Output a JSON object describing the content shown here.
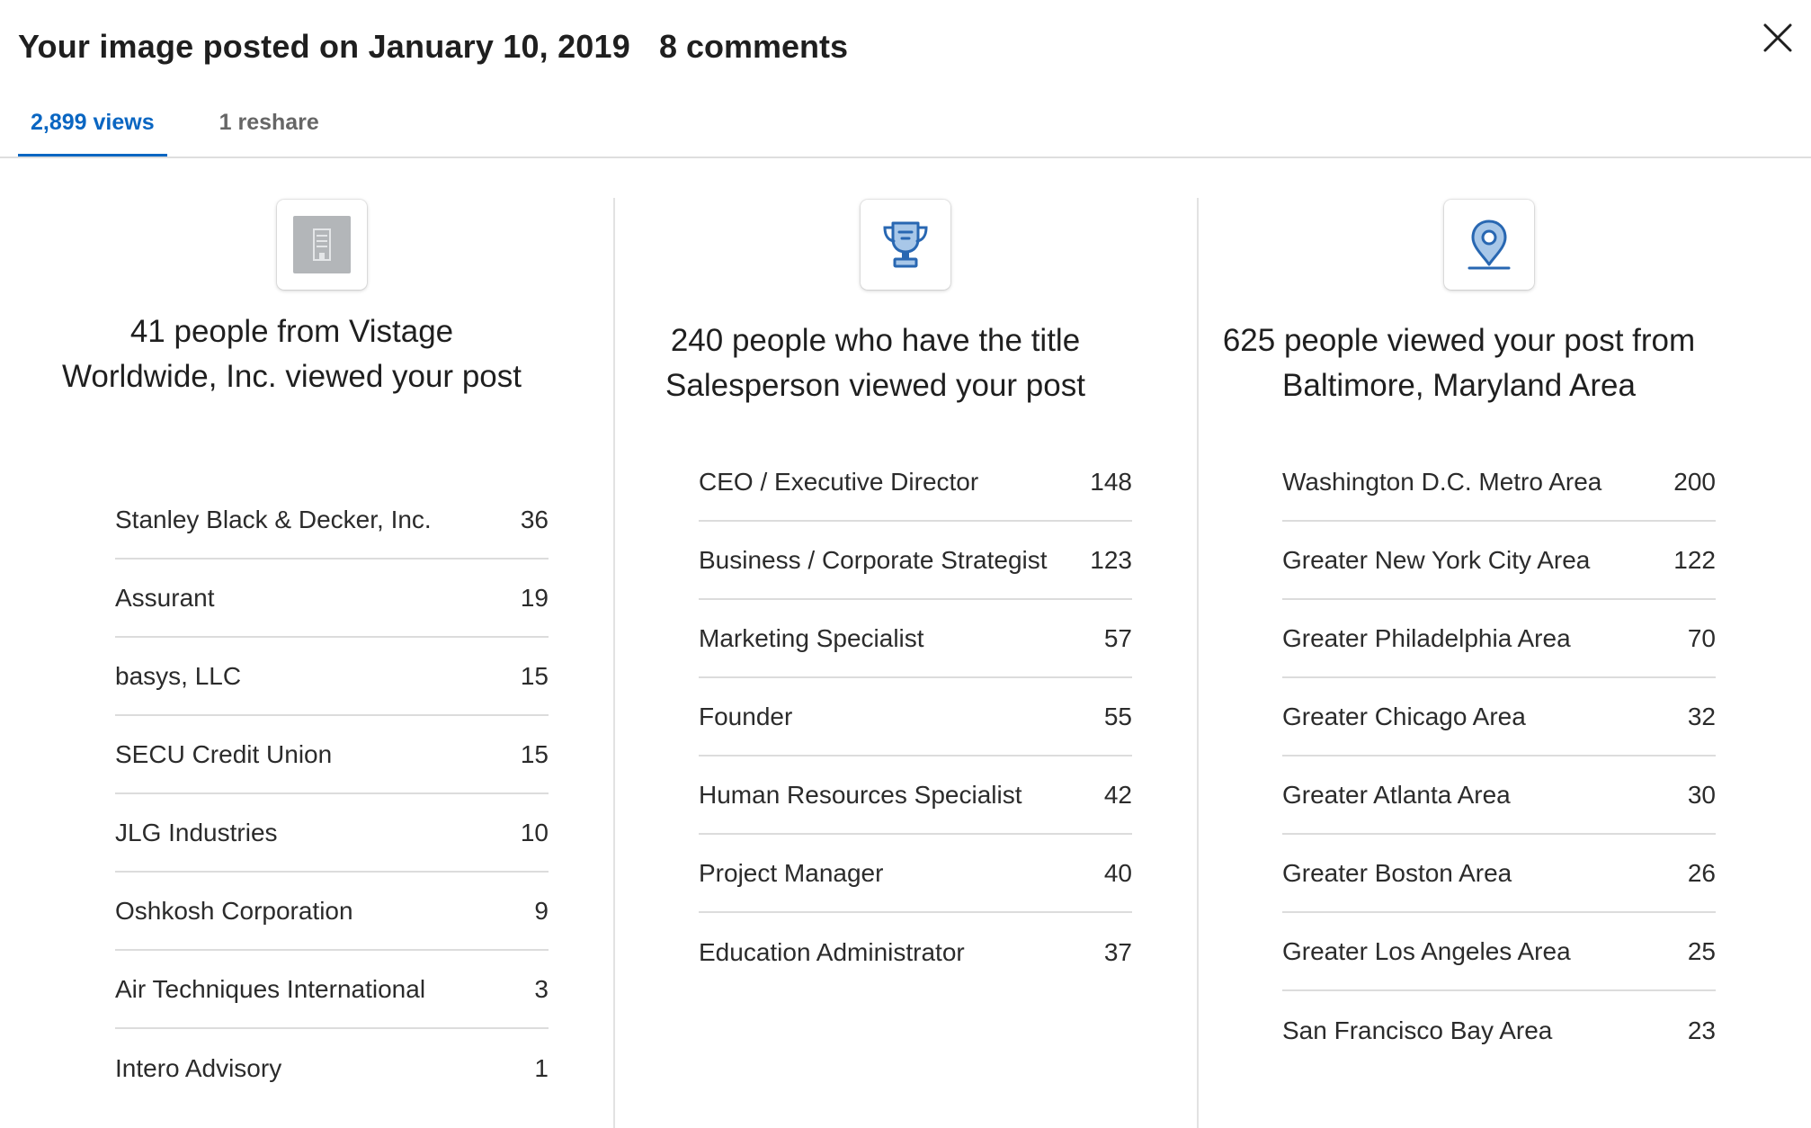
{
  "header": {
    "title": "Your image posted on January 10, 2019",
    "comments": "8 comments"
  },
  "tabs": [
    {
      "label": "2,899 views",
      "active": true
    },
    {
      "label": "1 reshare",
      "active": false
    }
  ],
  "colors": {
    "accent": "#0a66c2",
    "icon_blue": "#2867b2",
    "icon_fill": "#a8c7e8"
  },
  "columns": [
    {
      "icon": "building-icon",
      "heading": "41 people from Vistage Worldwide, Inc. viewed your post",
      "rows": [
        {
          "label": "Stanley Black & Decker, Inc.",
          "count": "36"
        },
        {
          "label": "Assurant",
          "count": "19"
        },
        {
          "label": "basys, LLC",
          "count": "15"
        },
        {
          "label": "SECU Credit Union",
          "count": "15"
        },
        {
          "label": "JLG Industries",
          "count": "10"
        },
        {
          "label": "Oshkosh Corporation",
          "count": "9"
        },
        {
          "label": "Air Techniques International",
          "count": "3"
        },
        {
          "label": "Intero Advisory",
          "count": "1"
        }
      ]
    },
    {
      "icon": "trophy-icon",
      "heading": "240 people who have the title Salesperson viewed your post",
      "rows": [
        {
          "label": "CEO / Executive Director",
          "count": "148"
        },
        {
          "label": "Business / Corporate Strategist",
          "count": "123"
        },
        {
          "label": "Marketing Specialist",
          "count": "57"
        },
        {
          "label": "Founder",
          "count": "55"
        },
        {
          "label": "Human Resources Specialist",
          "count": "42"
        },
        {
          "label": "Project Manager",
          "count": "40"
        },
        {
          "label": "Education Administrator",
          "count": "37"
        }
      ]
    },
    {
      "icon": "location-pin-icon",
      "heading": "625 people viewed your post from Baltimore, Maryland Area",
      "rows": [
        {
          "label": "Washington D.C. Metro Area",
          "count": "200"
        },
        {
          "label": "Greater New York City Area",
          "count": "122"
        },
        {
          "label": "Greater Philadelphia Area",
          "count": "70"
        },
        {
          "label": "Greater Chicago Area",
          "count": "32"
        },
        {
          "label": "Greater Atlanta Area",
          "count": "30"
        },
        {
          "label": "Greater Boston Area",
          "count": "26"
        },
        {
          "label": "Greater Los Angeles Area",
          "count": "25"
        },
        {
          "label": "San Francisco Bay Area",
          "count": "23"
        }
      ]
    }
  ]
}
